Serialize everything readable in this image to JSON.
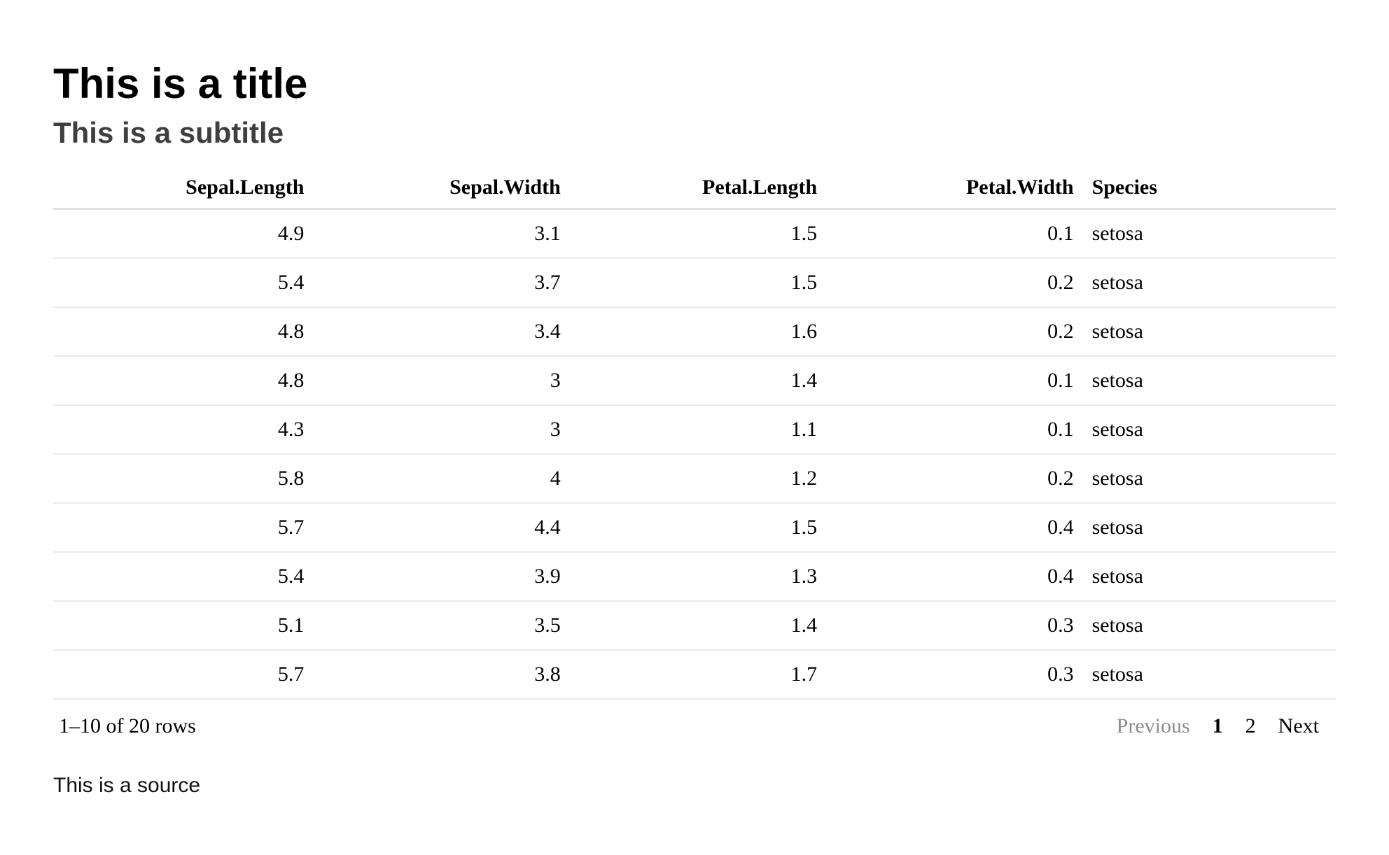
{
  "page": {
    "title": "This is a title",
    "subtitle": "This is a subtitle",
    "source": "This is a source"
  },
  "table": {
    "columns": [
      {
        "label": "Sepal.Length",
        "align": "right"
      },
      {
        "label": "Sepal.Width",
        "align": "right"
      },
      {
        "label": "Petal.Length",
        "align": "right"
      },
      {
        "label": "Petal.Width",
        "align": "right"
      },
      {
        "label": "Species",
        "align": "left"
      }
    ],
    "rows": [
      [
        "4.9",
        "3.1",
        "1.5",
        "0.1",
        "setosa"
      ],
      [
        "5.4",
        "3.7",
        "1.5",
        "0.2",
        "setosa"
      ],
      [
        "4.8",
        "3.4",
        "1.6",
        "0.2",
        "setosa"
      ],
      [
        "4.8",
        "3",
        "1.4",
        "0.1",
        "setosa"
      ],
      [
        "4.3",
        "3",
        "1.1",
        "0.1",
        "setosa"
      ],
      [
        "5.8",
        "4",
        "1.2",
        "0.2",
        "setosa"
      ],
      [
        "5.7",
        "4.4",
        "1.5",
        "0.4",
        "setosa"
      ],
      [
        "5.4",
        "3.9",
        "1.3",
        "0.4",
        "setosa"
      ],
      [
        "5.1",
        "3.5",
        "1.4",
        "0.3",
        "setosa"
      ],
      [
        "5.7",
        "3.8",
        "1.7",
        "0.3",
        "setosa"
      ]
    ]
  },
  "pagination": {
    "info": "1–10 of 20 rows",
    "previous_label": "Previous",
    "pages": [
      "1",
      "2"
    ],
    "current_page": "1",
    "next_label": "Next"
  },
  "colors": {
    "title_text": "#000000",
    "subtitle_text": "#3f3f3f",
    "table_text": "#000000",
    "header_border": "#e0e0e0",
    "row_border": "#ebebeb",
    "disabled_button": "#8d8d8d",
    "background": "#ffffff"
  }
}
